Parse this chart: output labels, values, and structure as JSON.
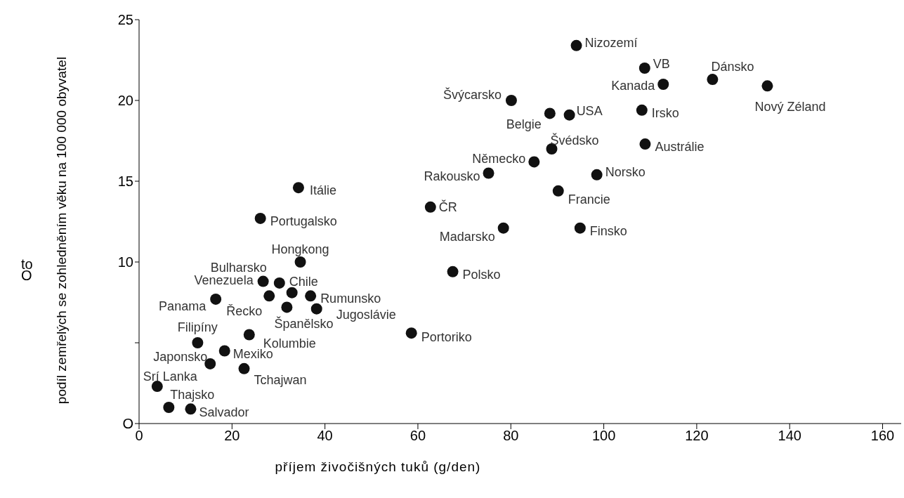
{
  "chart_data": {
    "type": "scatter",
    "xlabel": "příjem živočišných tuků (g/den)",
    "ylabel": "podíl zemřelých se zohledněním věku na 100 000 obyvatel",
    "color": "#111111",
    "marker": "circle",
    "grid": false,
    "legend": false,
    "x": [
      94.1,
      108.8,
      112.8,
      123.4,
      135.2,
      80.1,
      88.4,
      92.6,
      108.2,
      108.9,
      88.8,
      85.0,
      75.2,
      98.5,
      90.2,
      78.4,
      94.9,
      34.3,
      26.1,
      62.7,
      34.7,
      67.5,
      58.6,
      16.5,
      26.7,
      30.2,
      32.9,
      28.0,
      36.9,
      31.8,
      38.2,
      23.7,
      12.6,
      18.4,
      15.3,
      22.6,
      3.9,
      6.4,
      11.1
    ],
    "values": [
      23.4,
      22.0,
      21.0,
      21.3,
      20.9,
      20.0,
      19.2,
      19.1,
      19.4,
      17.3,
      17.0,
      16.2,
      15.5,
      15.4,
      14.4,
      12.1,
      12.1,
      14.6,
      12.7,
      13.4,
      10.0,
      9.4,
      5.6,
      7.7,
      8.8,
      8.7,
      8.1,
      7.9,
      7.9,
      7.2,
      7.1,
      5.5,
      5.0,
      4.5,
      3.7,
      3.4,
      2.3,
      1.0,
      0.9
    ],
    "xlim": [
      0,
      164
    ],
    "xticks": [
      0,
      20,
      40,
      60,
      80,
      100,
      120,
      140,
      160
    ],
    "ylim": [
      0,
      25
    ],
    "yticks": [
      {
        "value": 0,
        "label": "O"
      },
      {
        "value": 5,
        "label": null
      },
      10,
      15,
      20,
      25
    ],
    "annotations": [
      {
        "text": "Nizozemí",
        "x": 94.1,
        "y": 23.4
      },
      {
        "text": "VB",
        "x": 108.8,
        "y": 22.0
      },
      {
        "text": "Kanada",
        "x": 112.8,
        "y": 21.0
      },
      {
        "text": "Dánsko",
        "x": 123.4,
        "y": 21.3
      },
      {
        "text": "Nový Zéland",
        "x": 135.2,
        "y": 20.9
      },
      {
        "text": "Švýcarsko",
        "x": 80.1,
        "y": 20.0
      },
      {
        "text": "Belgie",
        "x": 88.4,
        "y": 19.2
      },
      {
        "text": "USA",
        "x": 92.6,
        "y": 19.1
      },
      {
        "text": "Irsko",
        "x": 108.2,
        "y": 19.4
      },
      {
        "text": "Austrálie",
        "x": 108.9,
        "y": 17.3
      },
      {
        "text": "Švédsko",
        "x": 88.8,
        "y": 17.0
      },
      {
        "text": "Německo",
        "x": 85.0,
        "y": 16.2
      },
      {
        "text": "Rakousko",
        "x": 75.2,
        "y": 15.5
      },
      {
        "text": "Norsko",
        "x": 98.5,
        "y": 15.4
      },
      {
        "text": "Francie",
        "x": 90.2,
        "y": 14.4
      },
      {
        "text": "Madarsko",
        "x": 78.4,
        "y": 12.1
      },
      {
        "text": "Finsko",
        "x": 94.9,
        "y": 12.1
      },
      {
        "text": "Itálie",
        "x": 34.3,
        "y": 14.6
      },
      {
        "text": "Portugalsko",
        "x": 26.1,
        "y": 12.7
      },
      {
        "text": "ČR",
        "x": 62.7,
        "y": 13.4
      },
      {
        "text": "Hongkong",
        "x": 34.7,
        "y": 10.0
      },
      {
        "text": "Polsko",
        "x": 67.5,
        "y": 9.4
      },
      {
        "text": "Portoriko",
        "x": 58.6,
        "y": 5.6
      },
      {
        "text": "Panama",
        "x": 16.5,
        "y": 7.7
      },
      {
        "text": "Venezuela",
        "x": 26.7,
        "y": 8.8
      },
      {
        "text": "Bulharsko",
        "x": 30.2,
        "y": 8.7
      },
      {
        "text": "Chile",
        "x": 32.9,
        "y": 8.1
      },
      {
        "text": "Řecko",
        "x": 28.0,
        "y": 7.9
      },
      {
        "text": "Rumunsko",
        "x": 36.9,
        "y": 7.9
      },
      {
        "text": "Španělsko",
        "x": 31.8,
        "y": 7.2
      },
      {
        "text": "Jugoslávie",
        "x": 38.2,
        "y": 7.1
      },
      {
        "text": "Kolumbie",
        "x": 23.7,
        "y": 5.5
      },
      {
        "text": "Filipíny",
        "x": 12.6,
        "y": 5.0
      },
      {
        "text": "Mexiko",
        "x": 18.4,
        "y": 4.5
      },
      {
        "text": "Japonsko",
        "x": 15.3,
        "y": 3.7
      },
      {
        "text": "Tchajwan",
        "x": 22.6,
        "y": 3.4
      },
      {
        "text": "Srí Lanka",
        "x": 3.9,
        "y": 2.3
      },
      {
        "text": "Thajsko",
        "x": 6.4,
        "y": 1.0
      },
      {
        "text": "Salvador",
        "x": 11.1,
        "y": 0.9
      },
      "to O"
    ]
  }
}
